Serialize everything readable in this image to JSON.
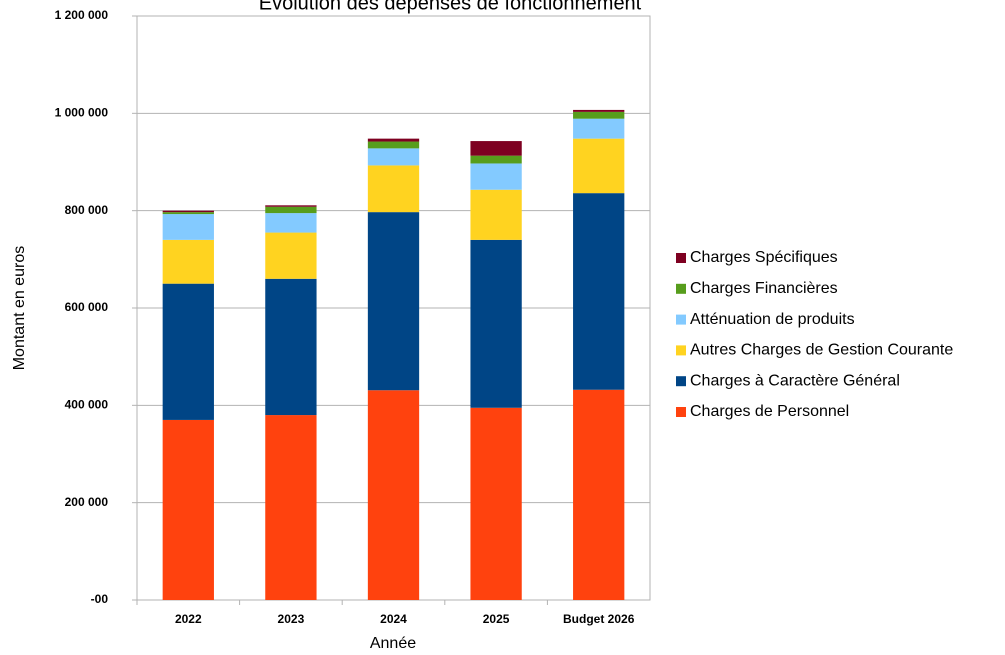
{
  "chart_data": {
    "type": "stacked_bar",
    "title": "Évolution des dépenses de fonctionnement",
    "x_label": "Année",
    "y_label": "Montant en euros",
    "categories": [
      "2022",
      "2023",
      "2024",
      "2025",
      "Budget 2026"
    ],
    "series": [
      {
        "name": "Charges de Personnel",
        "color": "#ff420e",
        "values": [
          370000,
          380000,
          431000,
          395000,
          432000
        ]
      },
      {
        "name": "Charges à Caractère Général",
        "color": "#004586",
        "values": [
          280000,
          280000,
          366000,
          345000,
          404000
        ]
      },
      {
        "name": "Autres Charges de Gestion Courante",
        "color": "#ffd320",
        "values": [
          90000,
          95000,
          96000,
          103000,
          112000
        ]
      },
      {
        "name": "Atténuation de produits",
        "color": "#83caff",
        "values": [
          53000,
          40000,
          35000,
          54000,
          41000
        ]
      },
      {
        "name": "Charges Financières",
        "color": "#579d1c",
        "values": [
          4000,
          13000,
          14000,
          16000,
          14000
        ]
      },
      {
        "name": "Charges Spécifiques",
        "color": "#7e0021",
        "values": [
          3000,
          3000,
          6000,
          30000,
          4000
        ]
      }
    ],
    "ylim": [
      0,
      1200000
    ],
    "yticks": [
      {
        "value": 0,
        "label": "-00"
      },
      {
        "value": 200000,
        "label": "200 000"
      },
      {
        "value": 400000,
        "label": "400 000"
      },
      {
        "value": 600000,
        "label": "600 000"
      },
      {
        "value": 800000,
        "label": "800 000"
      },
      {
        "value": 1000000,
        "label": "1 000 000"
      },
      {
        "value": 1200000,
        "label": "1 200 000"
      }
    ],
    "grid": true,
    "legend": "right"
  }
}
